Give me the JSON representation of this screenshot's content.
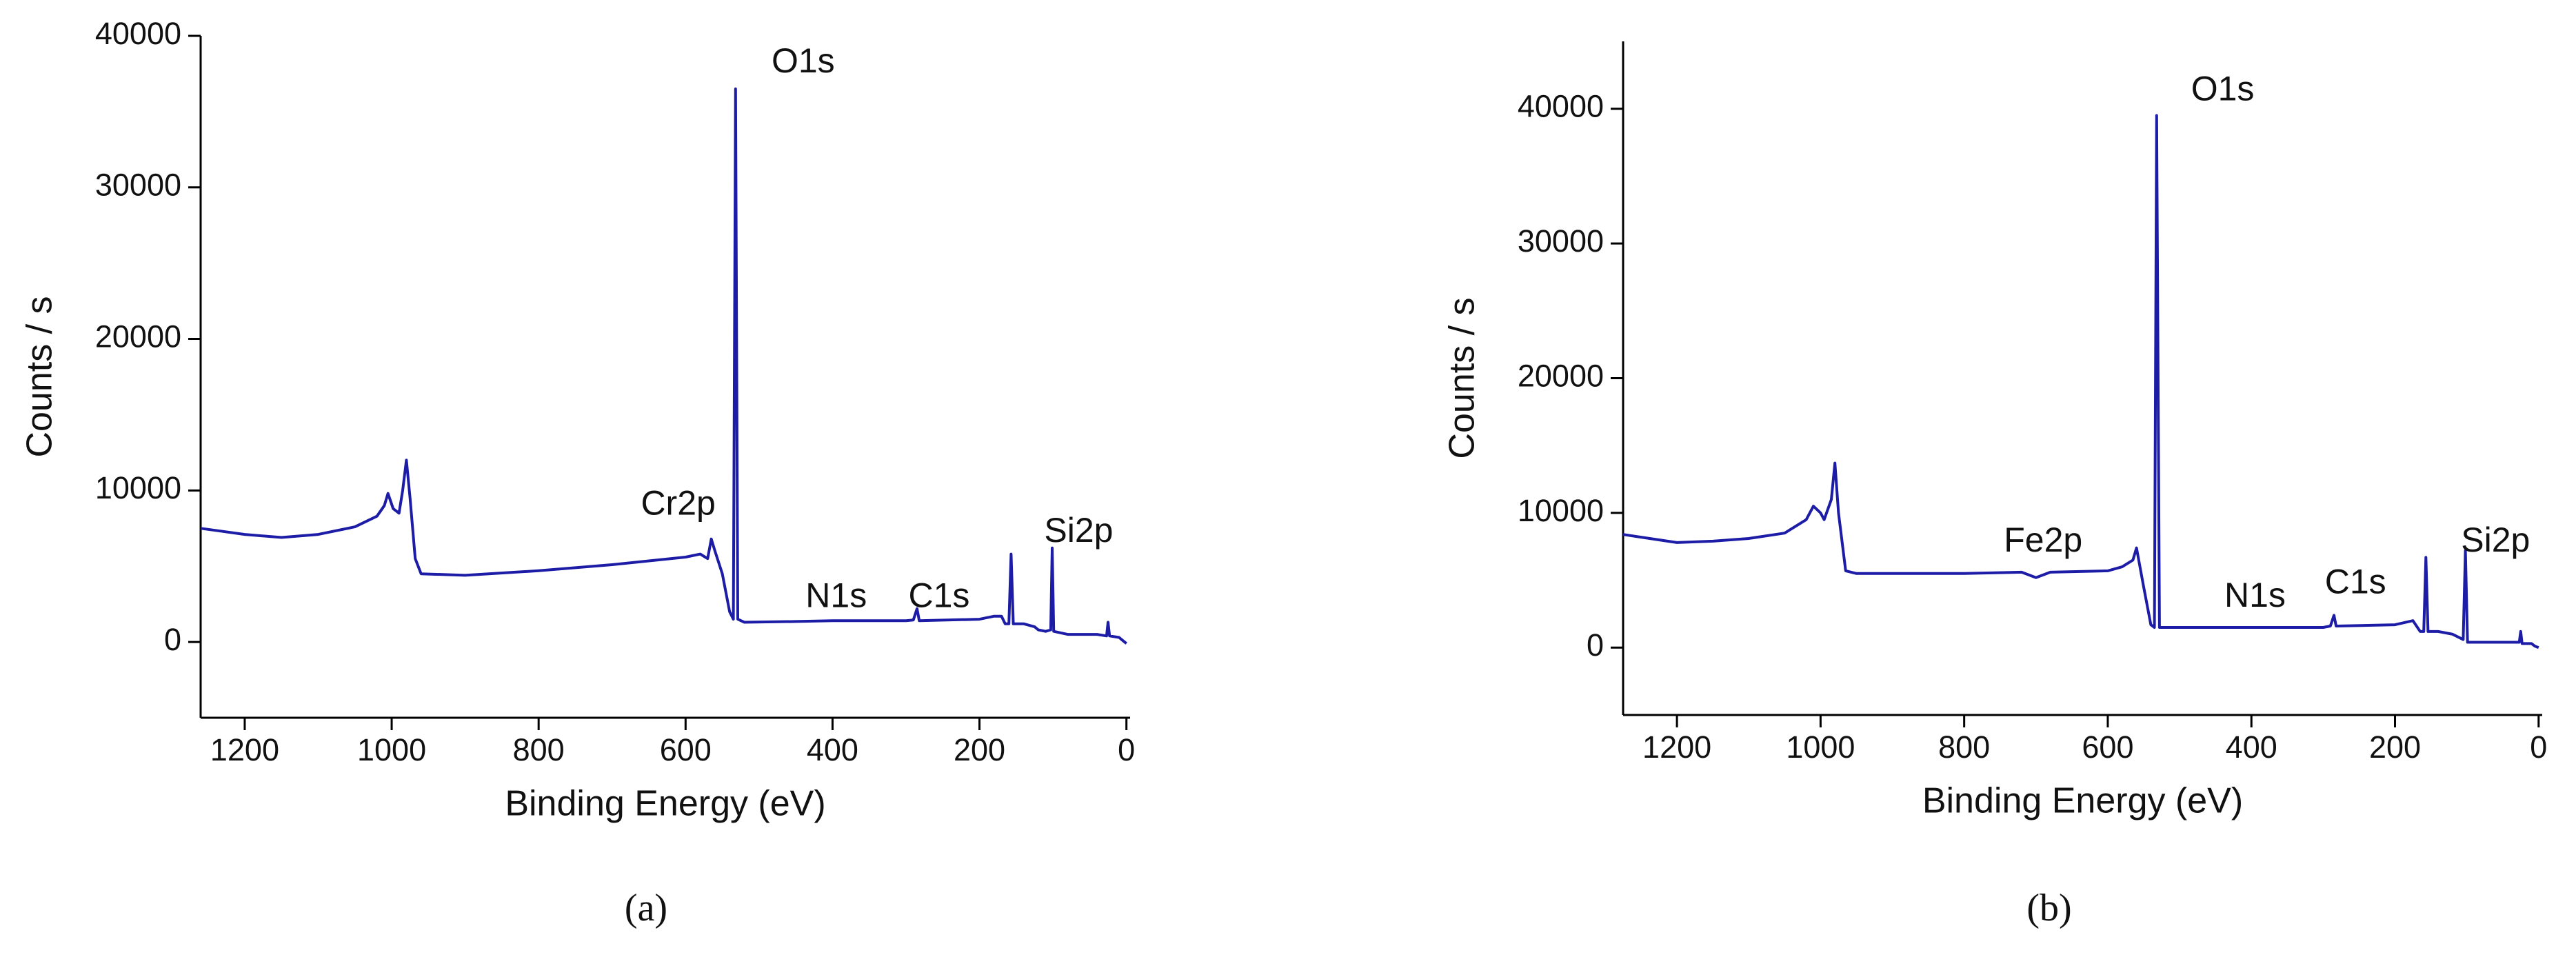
{
  "chart_data": [
    {
      "type": "line",
      "panel_label": "(a)",
      "xlabel": "Binding Energy (eV)",
      "ylabel": "Counts / s",
      "x": [
        1260,
        1230,
        1200,
        1150,
        1100,
        1050,
        1020,
        1010,
        1005,
        998,
        990,
        985,
        980,
        975,
        968,
        960,
        900,
        800,
        700,
        600,
        580,
        570,
        565,
        560,
        550,
        540,
        535,
        532,
        529,
        520,
        450,
        400,
        300,
        290,
        285,
        282,
        200,
        180,
        170,
        165,
        160,
        157,
        154,
        140,
        125,
        120,
        110,
        103,
        101,
        99,
        80,
        40,
        27,
        25,
        23,
        10,
        5,
        0
      ],
      "series": [
        {
          "color": "#1c1ca6",
          "values": [
            7500,
            7300,
            7100,
            6900,
            7100,
            7600,
            8300,
            9000,
            9800,
            8800,
            8500,
            10000,
            12000,
            9500,
            5500,
            4500,
            4400,
            4700,
            5100,
            5600,
            5800,
            5500,
            6800,
            6000,
            4500,
            2000,
            1500,
            36500,
            1500,
            1300,
            1350,
            1400,
            1400,
            1450,
            2200,
            1400,
            1500,
            1700,
            1700,
            1200,
            1200,
            5800,
            1200,
            1200,
            1000,
            800,
            700,
            800,
            6200,
            700,
            500,
            500,
            400,
            1300,
            400,
            300,
            100,
            -100
          ]
        }
      ],
      "annotations": [
        "O1s",
        "Cr2p",
        "N1s",
        "C1s",
        "Si2p"
      ],
      "xlim": [
        1260,
        -5
      ],
      "xticks": [
        1200,
        1000,
        800,
        600,
        400,
        200,
        0
      ],
      "ylim": [
        -5000,
        40000
      ],
      "yticks": [
        0,
        10000,
        20000,
        30000,
        40000
      ]
    },
    {
      "type": "line",
      "panel_label": "(b)",
      "xlabel": "Binding Energy (eV)",
      "ylabel": "Counts / s",
      "x": [
        1275,
        1250,
        1200,
        1150,
        1100,
        1050,
        1020,
        1010,
        1000,
        995,
        985,
        980,
        975,
        965,
        950,
        900,
        800,
        720,
        700,
        680,
        600,
        580,
        565,
        560,
        550,
        540,
        535,
        532,
        528,
        520,
        450,
        400,
        300,
        290,
        285,
        282,
        200,
        175,
        165,
        160,
        157,
        154,
        140,
        120,
        105,
        102,
        99,
        80,
        40,
        27,
        25,
        23,
        10,
        5,
        0
      ],
      "series": [
        {
          "color": "#1c1ca6",
          "values": [
            8400,
            8200,
            7800,
            7900,
            8100,
            8500,
            9500,
            10500,
            10000,
            9500,
            11000,
            13700,
            10000,
            5700,
            5500,
            5500,
            5500,
            5600,
            5200,
            5600,
            5700,
            6000,
            6500,
            7400,
            4500,
            1700,
            1500,
            39500,
            1500,
            1500,
            1500,
            1500,
            1500,
            1600,
            2400,
            1600,
            1700,
            2000,
            1200,
            1200,
            6700,
            1200,
            1200,
            1000,
            600,
            7200,
            400,
            400,
            400,
            400,
            1200,
            300,
            300,
            100,
            0
          ]
        }
      ],
      "annotations": [
        "O1s",
        "Fe2p",
        "N1s",
        "C1s",
        "Si2p"
      ],
      "xlim": [
        1275,
        -5
      ],
      "xticks": [
        1200,
        1000,
        800,
        600,
        400,
        200,
        0
      ],
      "ylim": [
        -5000,
        45000
      ],
      "yticks": [
        0,
        10000,
        20000,
        30000,
        40000
      ]
    }
  ]
}
